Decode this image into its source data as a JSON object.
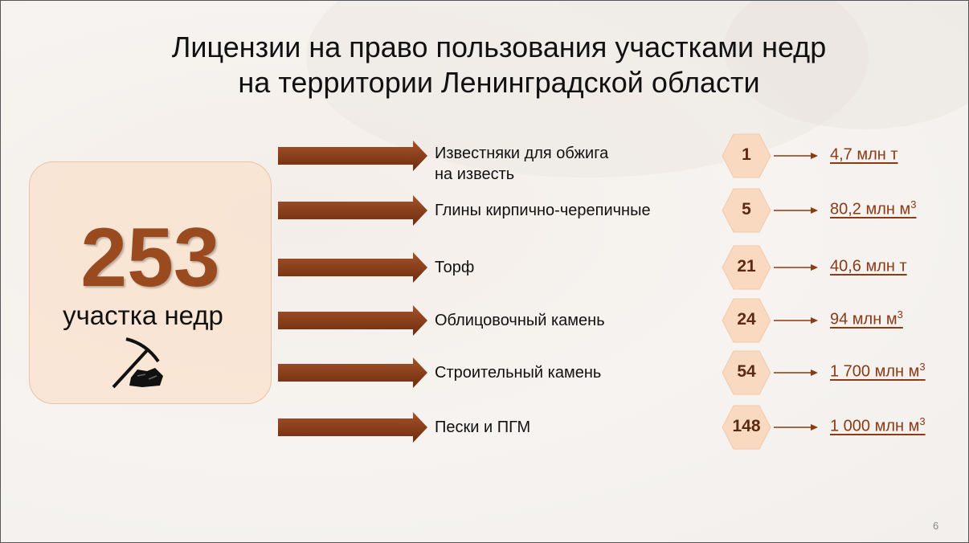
{
  "title": {
    "line1": "Лицензии на право пользования участками недр",
    "line2": "на территории Ленинградской области"
  },
  "summary": {
    "count": "253",
    "label": "участка недр",
    "icon": "pickaxe-coal-icon"
  },
  "rows": [
    {
      "mineral_line1": "Известняки для обжига",
      "mineral_line2": "на известь",
      "licenses": "1",
      "reserve": "4,7 млн т",
      "sup": ""
    },
    {
      "mineral_line1": "Глины кирпично-черепичные",
      "mineral_line2": "",
      "licenses": "5",
      "reserve": "80,2 млн м",
      "sup": "3"
    },
    {
      "mineral_line1": "Торф",
      "mineral_line2": "",
      "licenses": "21",
      "reserve": "40,6 млн т",
      "sup": ""
    },
    {
      "mineral_line1": "Облицовочный камень",
      "mineral_line2": "",
      "licenses": "24",
      "reserve": "94 млн м",
      "sup": "3"
    },
    {
      "mineral_line1": "Строительный камень",
      "mineral_line2": "",
      "licenses": "54",
      "reserve": "1 700 млн м",
      "sup": "3"
    },
    {
      "mineral_line1": "Пески и ПГМ",
      "mineral_line2": "",
      "licenses": "148",
      "reserve": "1 000 млн м",
      "sup": "3"
    }
  ],
  "page_number": "6",
  "colors": {
    "accent": "#8b3a14",
    "hex_fill": "#f9d9c0",
    "box_fill": "#fadec8"
  }
}
